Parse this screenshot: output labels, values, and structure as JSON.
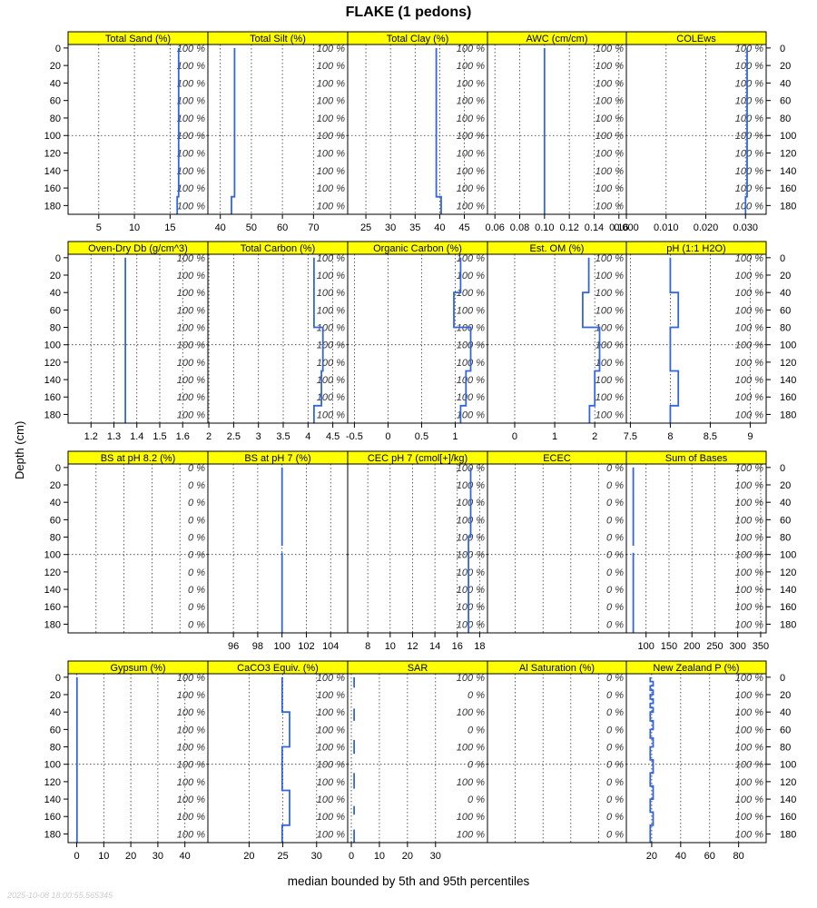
{
  "title": "FLAKE (1 pedons)",
  "xlabel": "median bounded by 5th and 95th percentiles",
  "ylabel": "Depth (cm)",
  "timestamp": "2025-10-08 18:00:55.565345",
  "chart_data": {
    "type": "line",
    "title": "FLAKE (1 pedons)",
    "xlabel": "median bounded by 5th and 95th percentiles",
    "ylabel": "Depth (cm)",
    "ylim": [
      190,
      -4
    ],
    "depth_ticks": [
      0,
      20,
      40,
      60,
      80,
      100,
      120,
      140,
      160,
      180
    ],
    "colors": {
      "line": "#3366dd",
      "strip": "#ffff00",
      "grid": "#333333",
      "pct_label": "#333333"
    },
    "grid": true,
    "panels": [
      {
        "name": "Total Sand (%)",
        "xlim": [
          0.7,
          20.3
        ],
        "xticks": [
          5,
          10,
          15
        ],
        "xtick_side": "bottom",
        "pct_labels": [
          "100 %",
          "100 %",
          "100 %",
          "100 %",
          "100 %",
          "100 %",
          "100 %",
          "100 %",
          "100 %",
          "100 %"
        ],
        "segments": [
          {
            "x": [
              16.2,
              16.2,
              16.0,
              16.0
            ],
            "depth": [
              0,
              170,
              170,
              190
            ]
          }
        ]
      },
      {
        "name": "Total Silt (%)",
        "xlim": [
          36,
          81
        ],
        "xticks": [
          40,
          50,
          60,
          70
        ],
        "xtick_side": "bottom",
        "pct_labels": [
          "100 %",
          "100 %",
          "100 %",
          "100 %",
          "100 %",
          "100 %",
          "100 %",
          "100 %",
          "100 %",
          "100 %"
        ],
        "segments": [
          {
            "x": [
              44.6,
              44.6,
              43.6,
              43.6
            ],
            "depth": [
              0,
              170,
              170,
              190
            ]
          }
        ]
      },
      {
        "name": "Total Clay (%)",
        "xlim": [
          21.3,
          49.7
        ],
        "xticks": [
          25,
          30,
          35,
          40,
          45
        ],
        "xtick_side": "bottom",
        "pct_labels": [
          "100 %",
          "100 %",
          "100 %",
          "100 %",
          "100 %",
          "100 %",
          "100 %",
          "100 %",
          "100 %",
          "100 %"
        ],
        "segments": [
          {
            "x": [
              39.3,
              39.3,
              40.3,
              40.3
            ],
            "depth": [
              0,
              170,
              170,
              190
            ]
          }
        ]
      },
      {
        "name": "AWC (cm/cm)",
        "xlim": [
          0.054,
          0.166
        ],
        "xticks": [
          0.06,
          0.08,
          0.1,
          0.12,
          0.14,
          0.16
        ],
        "xtick_labels": [
          "0.06",
          "0.08",
          "0.10",
          "0.12",
          "0.14",
          "0.16"
        ],
        "xtick_side": "bottom",
        "pct_labels": [
          "100 %",
          "100 %",
          "100 %",
          "100 %",
          "100 %",
          "100 %",
          "100 %",
          "100 %",
          "100 %",
          "100 %"
        ],
        "segments": [
          {
            "x": [
              0.1,
              0.1
            ],
            "depth": [
              0,
              190
            ]
          }
        ]
      },
      {
        "name": "COLEws",
        "xlim": [
          0,
          0.0352
        ],
        "xticks": [
          0.0,
          0.01,
          0.02,
          0.03
        ],
        "xtick_labels": [
          "0.000",
          "0.010",
          "0.020",
          "0.030"
        ],
        "xtick_side": "bottom",
        "pct_labels": [
          "100 %",
          "100 %",
          "100 %",
          "100 %",
          "100 %",
          "100 %",
          "100 %",
          "100 %",
          "100 %",
          "100 %"
        ],
        "segments": [
          {
            "x": [
              0.0304,
              0.0304,
              0.03,
              0.03
            ],
            "depth": [
              0,
              170,
              170,
              190
            ]
          }
        ]
      },
      {
        "name": "Oven-Dry Db (g/cm^3)",
        "xlim": [
          1.1,
          1.71
        ],
        "xticks": [
          1.2,
          1.3,
          1.4,
          1.5,
          1.6
        ],
        "xtick_side": "bottom",
        "pct_labels": [
          "100 %",
          "100 %",
          "100 %",
          "100 %",
          "100 %",
          "100 %",
          "100 %",
          "100 %",
          "100 %",
          "100 %"
        ],
        "segments": [
          {
            "x": [
              1.35,
              1.35
            ],
            "depth": [
              0,
              190
            ]
          }
        ]
      },
      {
        "name": "Total Carbon (%)",
        "xlim": [
          1.98,
          4.8
        ],
        "xticks": [
          2.0,
          2.5,
          3.0,
          3.5,
          4.0,
          4.5
        ],
        "xtick_side": "bottom",
        "pct_labels": [
          "100 %",
          "100 %",
          "100 %",
          "100 %",
          "100 %",
          "100 %",
          "100 %",
          "100 %",
          "100 %",
          "100 %"
        ],
        "segments": [
          {
            "x": [
              4.12,
              4.12,
              4.3,
              4.3,
              4.27,
              4.27,
              4.12,
              4.12
            ],
            "depth": [
              0,
              80,
              80,
              130,
              130,
              170,
              170,
              190
            ]
          }
        ]
      },
      {
        "name": "Organic Carbon (%)",
        "xlim": [
          -0.6,
          1.48
        ],
        "xticks": [
          -0.5,
          0.0,
          0.5,
          1.0
        ],
        "xtick_side": "bottom",
        "pct_labels": [
          "100 %",
          "100 %",
          "100 %",
          "100 %",
          "100 %",
          "100 %",
          "100 %",
          "100 %",
          "100 %",
          "100 %"
        ],
        "segments": [
          {
            "x": [
              1.08,
              1.08,
              0.98,
              0.98,
              1.23,
              1.23,
              1.16,
              1.16,
              1.08,
              1.08
            ],
            "depth": [
              0,
              40,
              40,
              80,
              80,
              130,
              130,
              170,
              170,
              190
            ]
          }
        ]
      },
      {
        "name": "Est. OM (%)",
        "xlim": [
          -0.68,
          2.79
        ],
        "xticks": [
          0,
          1,
          2
        ],
        "xtick_side": "bottom",
        "pct_labels": [
          "100 %",
          "100 %",
          "100 %",
          "100 %",
          "100 %",
          "100 %",
          "100 %",
          "100 %",
          "100 %",
          "100 %"
        ],
        "segments": [
          {
            "x": [
              1.85,
              1.85,
              1.7,
              1.7,
              2.12,
              2.12,
              2.0,
              2.0,
              1.87,
              1.87
            ],
            "depth": [
              0,
              40,
              40,
              80,
              80,
              130,
              130,
              170,
              170,
              190
            ]
          }
        ]
      },
      {
        "name": "pH (1:1 H2O)",
        "xlim": [
          7.45,
          9.2
        ],
        "xticks": [
          7.5,
          8.0,
          8.5,
          9.0
        ],
        "xtick_side": "bottom",
        "pct_labels": [
          "100 %",
          "100 %",
          "100 %",
          "100 %",
          "100 %",
          "100 %",
          "100 %",
          "100 %",
          "100 %",
          "100 %"
        ],
        "segments": [
          {
            "x": [
              8.0,
              8.0,
              8.1,
              8.1,
              8.0,
              8.0,
              8.1,
              8.1,
              8.0,
              8.0
            ],
            "depth": [
              0,
              40,
              40,
              80,
              80,
              130,
              130,
              170,
              170,
              190
            ]
          }
        ]
      },
      {
        "name": "BS at pH 8.2 (%)",
        "xlim": [
          0,
          1
        ],
        "xticks": [],
        "xtick_side": "bottom",
        "pct_labels": [
          "0 %",
          "0 %",
          "0 %",
          "0 %",
          "0 %",
          "0 %",
          "0 %",
          "0 %",
          "0 %",
          "0 %"
        ],
        "segments": []
      },
      {
        "name": "BS at pH 7 (%)",
        "xlim": [
          93.9,
          105.4
        ],
        "xticks": [
          96,
          98,
          100,
          102,
          104
        ],
        "xtick_side": "bottom",
        "pct_labels": [
          "",
          "",
          "",
          "",
          "",
          "",
          "",
          "",
          "",
          ""
        ],
        "segments": [
          {
            "x": [
              100,
              100
            ],
            "depth": [
              0,
              90
            ]
          },
          {
            "x": [
              100,
              100
            ],
            "depth": [
              98,
              190
            ]
          }
        ]
      },
      {
        "name": "CEC pH 7 (cmol[+]/kg)",
        "xlim": [
          6.2,
          18.7
        ],
        "xticks": [
          8,
          10,
          12,
          14,
          16,
          18
        ],
        "xtick_side": "bottom",
        "pct_labels": [
          "100 %",
          "100 %",
          "100 %",
          "100 %",
          "100 %",
          "100 %",
          "100 %",
          "100 %",
          "100 %",
          "100 %"
        ],
        "segments": [
          {
            "x": [
              17.2,
              17.2,
              17.0,
              17.0
            ],
            "depth": [
              0,
              80,
              80,
              190
            ]
          }
        ]
      },
      {
        "name": "ECEC",
        "xlim": [
          0,
          1
        ],
        "xticks": [],
        "xtick_side": "bottom",
        "pct_labels": [
          "0 %",
          "0 %",
          "0 %",
          "0 %",
          "0 %",
          "0 %",
          "0 %",
          "0 %",
          "0 %",
          "0 %"
        ],
        "segments": []
      },
      {
        "name": "Sum of Bases",
        "xlim": [
          57,
          362
        ],
        "xticks": [
          100,
          150,
          200,
          250,
          300,
          350
        ],
        "xtick_side": "bottom",
        "pct_labels": [
          "100 %",
          "100 %",
          "100 %",
          "100 %",
          "100 %",
          "100 %",
          "100 %",
          "100 %",
          "100 %",
          "100 %"
        ],
        "segments": [
          {
            "x": [
              72,
              72
            ],
            "depth": [
              0,
              90
            ]
          },
          {
            "x": [
              72,
              72
            ],
            "depth": [
              98,
              190
            ]
          }
        ]
      },
      {
        "name": "Gypsum (%)",
        "xlim": [
          -3.2,
          48.5
        ],
        "xticks": [
          0,
          10,
          20,
          30,
          40
        ],
        "xtick_side": "bottom",
        "pct_labels": [
          "100 %",
          "100 %",
          "100 %",
          "100 %",
          "100 %",
          "100 %",
          "100 %",
          "100 %",
          "100 %",
          "100 %"
        ],
        "segments": [
          {
            "x": [
              0.1,
              0.1
            ],
            "depth": [
              0,
              190
            ]
          }
        ]
      },
      {
        "name": "CaCO3 Equiv. (%)",
        "xlim": [
          13.9,
          34.6
        ],
        "xticks": [
          20,
          25,
          30
        ],
        "xtick_side": "bottom",
        "pct_labels": [
          "100 %",
          "100 %",
          "100 %",
          "100 %",
          "100 %",
          "100 %",
          "100 %",
          "100 %",
          "100 %",
          "100 %"
        ],
        "segments": [
          {
            "x": [
              24.9,
              24.9,
              26.0,
              26.0,
              24.9,
              24.9,
              26.0,
              26.0,
              24.9,
              24.9
            ],
            "depth": [
              0,
              40,
              40,
              80,
              80,
              130,
              130,
              170,
              170,
              190
            ]
          }
        ]
      },
      {
        "name": "SAR",
        "xlim": [
          -1.3,
          48.5
        ],
        "xticks": [
          0,
          10,
          20,
          30
        ],
        "xtick_side": "bottom",
        "pct_labels": [
          "100 %",
          "0 %",
          "100 %",
          "0 %",
          "100 %",
          "0 %",
          "100 %",
          "0 %",
          "100 %",
          "100 %"
        ],
        "segments": [
          {
            "x": [
              1,
              1
            ],
            "depth": [
              0,
              12
            ]
          },
          {
            "x": [
              1,
              1
            ],
            "depth": [
              36,
              50
            ]
          },
          {
            "x": [
              1,
              1
            ],
            "depth": [
              72,
              88
            ]
          },
          {
            "x": [
              1,
              1
            ],
            "depth": [
              110,
              128
            ]
          },
          {
            "x": [
              1,
              1
            ],
            "depth": [
              148,
              158
            ]
          },
          {
            "x": [
              1,
              1
            ],
            "depth": [
              175,
              190
            ]
          }
        ]
      },
      {
        "name": "Al Saturation (%)",
        "xlim": [
          0,
          1
        ],
        "xticks": [],
        "xtick_side": "bottom",
        "pct_labels": [
          "0 %",
          "0 %",
          "0 %",
          "0 %",
          "0 %",
          "0 %",
          "0 %",
          "0 %",
          "0 %",
          "0 %"
        ],
        "segments": []
      },
      {
        "name": "New Zealand P (%)",
        "xlim": [
          2.5,
          99
        ],
        "xticks": [
          20,
          40,
          60,
          80
        ],
        "xtick_side": "bottom",
        "pct_labels": [
          "100 %",
          "100 %",
          "100 %",
          "100 %",
          "100 %",
          "100 %",
          "100 %",
          "100 %",
          "100 %",
          "100 %"
        ],
        "segments": [
          {
            "x": [
              19,
              19,
              21,
              21,
              19,
              19,
              21,
              21,
              19,
              19,
              21,
              21,
              19,
              19,
              21,
              21,
              19,
              19,
              21,
              21,
              19,
              19,
              21,
              21,
              19,
              19,
              21,
              21,
              19,
              19,
              21,
              21,
              19,
              19,
              21,
              21,
              19,
              19
            ],
            "depth": [
              0,
              5,
              5,
              10,
              10,
              15,
              15,
              20,
              20,
              25,
              25,
              30,
              30,
              35,
              35,
              40,
              40,
              50,
              50,
              60,
              60,
              70,
              70,
              80,
              80,
              95,
              95,
              110,
              110,
              125,
              125,
              140,
              140,
              155,
              155,
              170,
              170,
              190
            ]
          }
        ]
      }
    ]
  }
}
